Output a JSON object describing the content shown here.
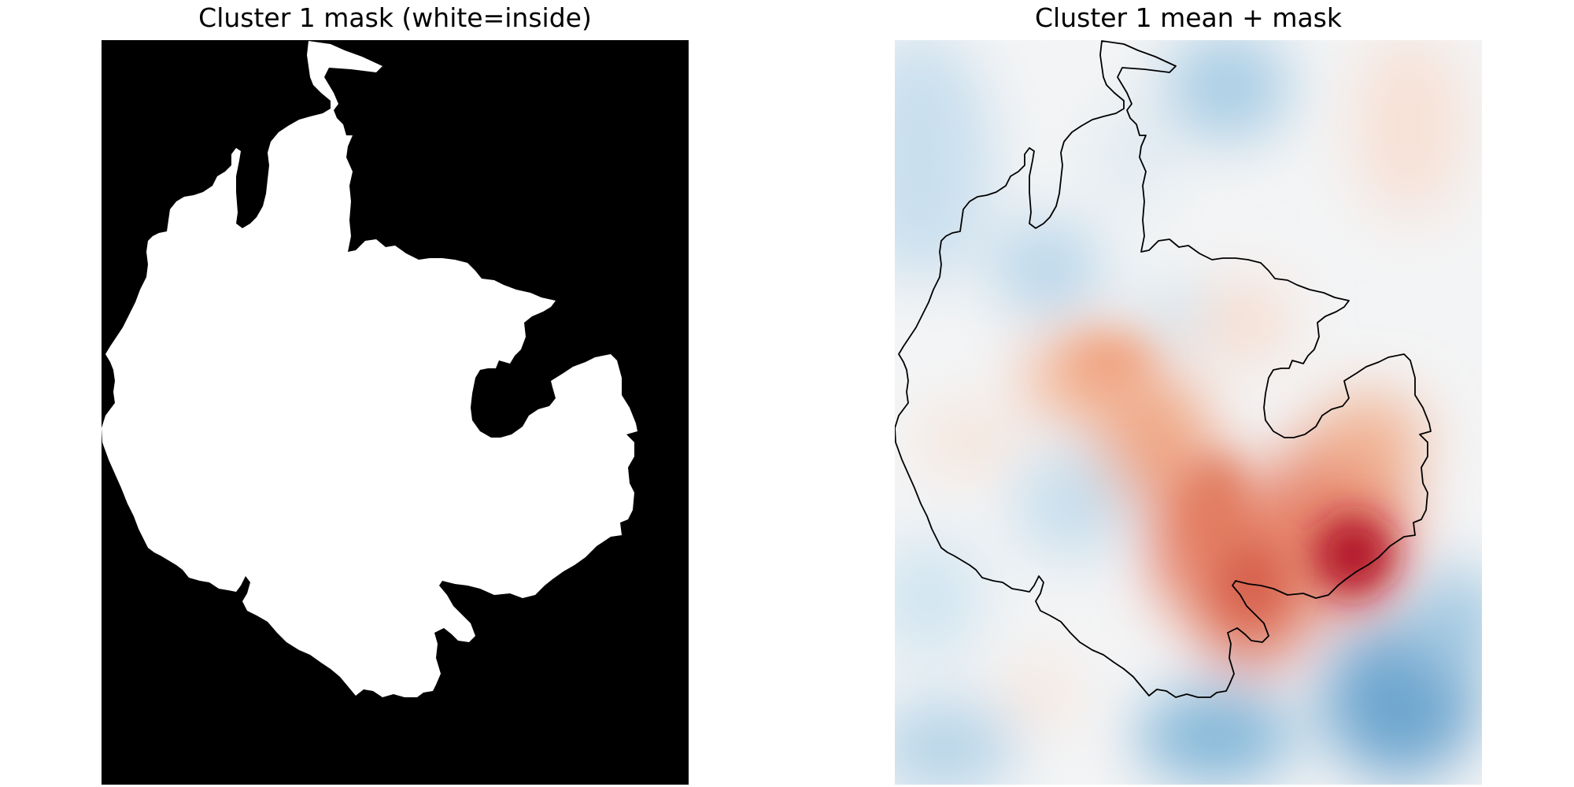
{
  "chart_data": [
    {
      "type": "heatmap",
      "title": "Cluster 1 mask (white=inside)",
      "colormap": "gray",
      "axes": "off",
      "grid": false,
      "legend": "none",
      "values_description_levels": [
        0,
        1
      ],
      "colors": {
        "inside": "#ffffff",
        "outside": "#000000"
      }
    },
    {
      "type": "heatmap",
      "title": "Cluster 1 mean + mask",
      "colormap": "RdBu_r",
      "axes": "off",
      "grid": false,
      "legend": "none",
      "colors": {
        "high": "#b2182b",
        "mid": "#f7f7f7",
        "low": "#2166ac",
        "contour": "#000000"
      }
    }
  ]
}
